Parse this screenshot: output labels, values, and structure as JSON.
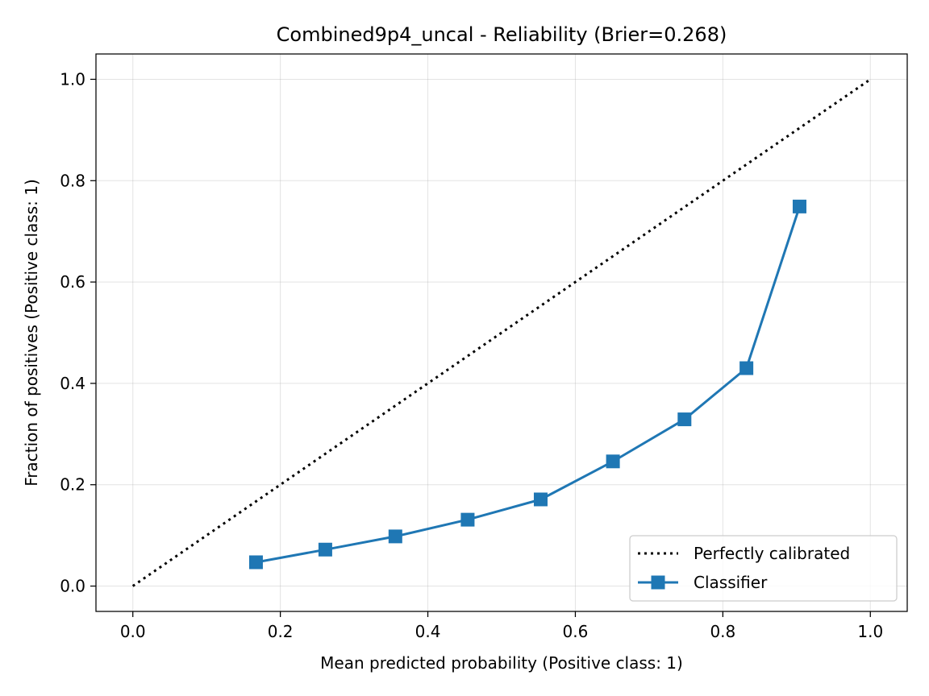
{
  "chart_data": {
    "type": "line",
    "title": "Combined9p4_uncal - Reliability (Brier=0.268)",
    "xlabel": "Mean predicted probability (Positive class: 1)",
    "ylabel": "Fraction of positives (Positive class: 1)",
    "xlim": [
      -0.05,
      1.05
    ],
    "ylim": [
      -0.05,
      1.05
    ],
    "xticks": [
      0.0,
      0.2,
      0.4,
      0.6,
      0.8,
      1.0
    ],
    "yticks": [
      0.0,
      0.2,
      0.4,
      0.6,
      0.8,
      1.0
    ],
    "xtick_labels": [
      "0.0",
      "0.2",
      "0.4",
      "0.6",
      "0.8",
      "1.0"
    ],
    "ytick_labels": [
      "0.0",
      "0.2",
      "0.4",
      "0.6",
      "0.8",
      "1.0"
    ],
    "grid": true,
    "legend_position": "lower-right",
    "series": [
      {
        "name": "Perfectly calibrated",
        "style": "dotted",
        "marker": "none",
        "color": "#000000",
        "x": [
          0.0,
          1.0
        ],
        "y": [
          0.0,
          1.0
        ]
      },
      {
        "name": "Classifier",
        "style": "solid",
        "marker": "square",
        "color": "#1f77b4",
        "x": [
          0.167,
          0.261,
          0.356,
          0.454,
          0.553,
          0.651,
          0.748,
          0.832,
          0.904
        ],
        "y": [
          0.047,
          0.072,
          0.098,
          0.131,
          0.171,
          0.246,
          0.329,
          0.43,
          0.749
        ]
      }
    ]
  }
}
